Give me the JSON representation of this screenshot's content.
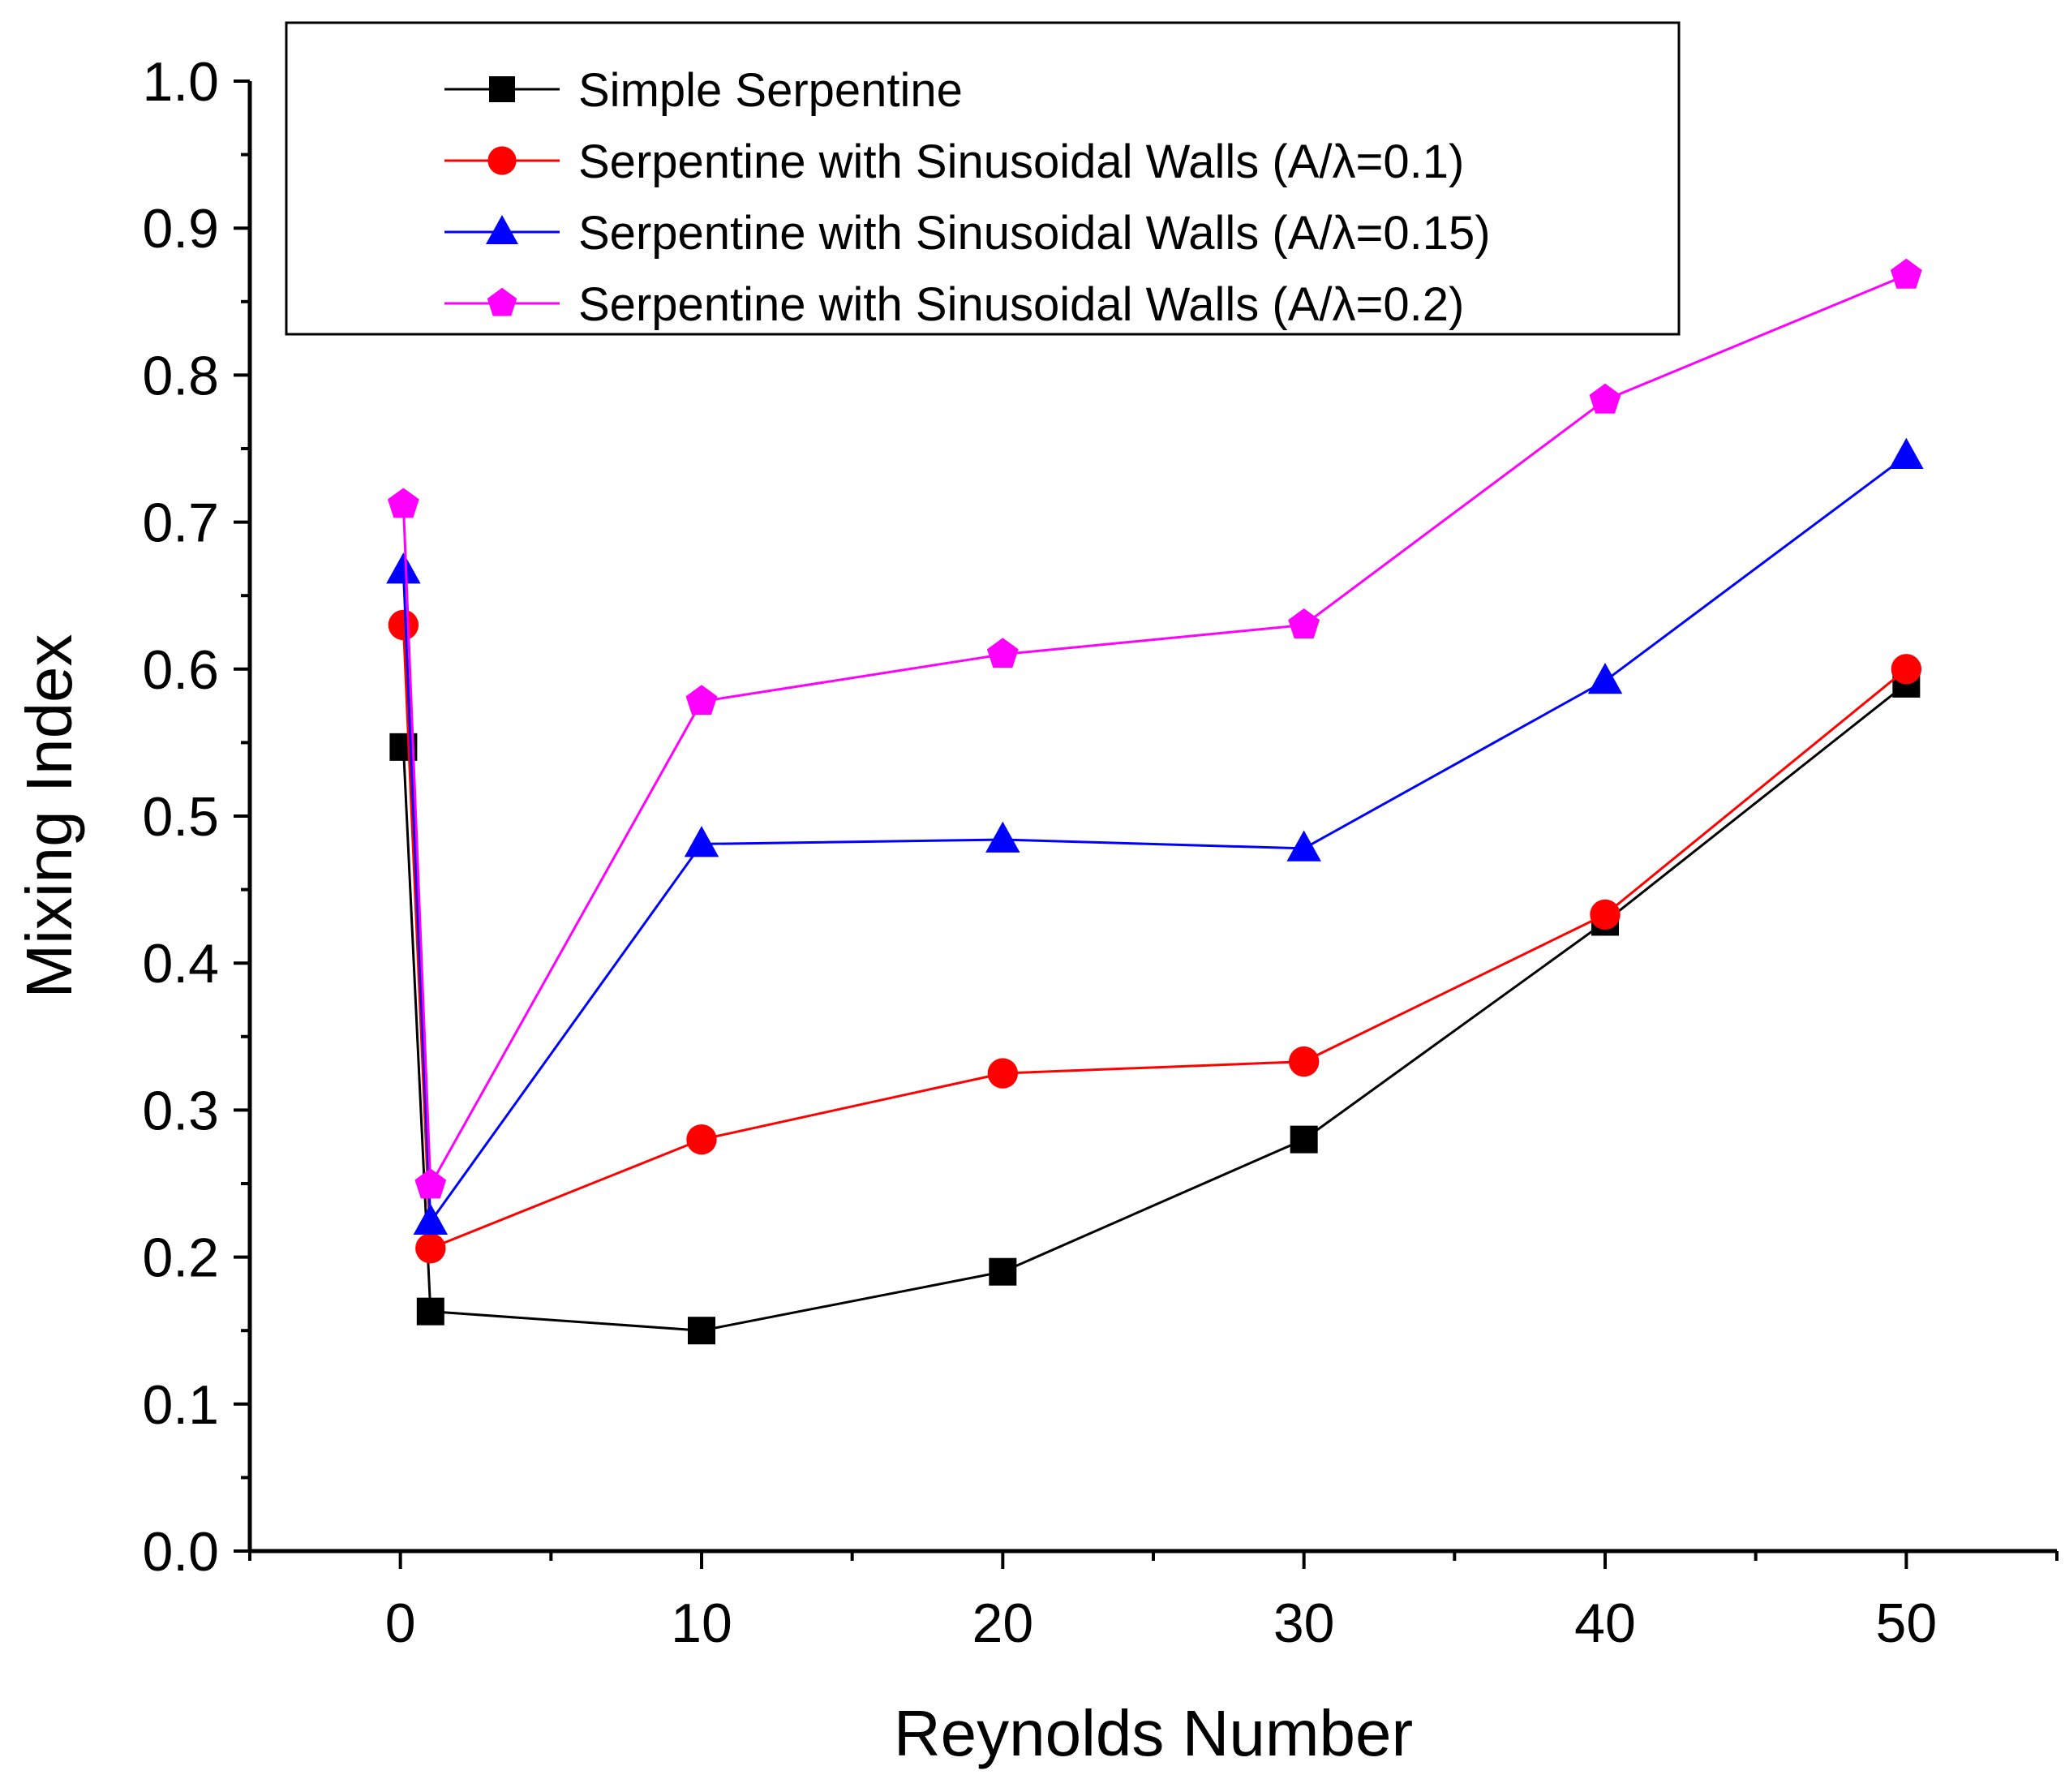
{
  "chart_data": {
    "type": "line",
    "title": "",
    "xlabel": "Reynolds Number",
    "ylabel": "Mixing Index",
    "xlim": [
      -5,
      55
    ],
    "ylim": [
      0.0,
      1.0
    ],
    "x_ticks": [
      0,
      10,
      20,
      30,
      40,
      50
    ],
    "x_tick_labels": [
      "0",
      "10",
      "20",
      "30",
      "40",
      "50"
    ],
    "y_ticks": [
      0.0,
      0.1,
      0.2,
      0.3,
      0.4,
      0.5,
      0.6,
      0.7,
      0.8,
      0.9,
      1.0
    ],
    "y_tick_labels": [
      "0.0",
      "0.1",
      "0.2",
      "0.3",
      "0.4",
      "0.5",
      "0.6",
      "0.7",
      "0.8",
      "0.9",
      "1.0"
    ],
    "legend_position": "top-left",
    "x": [
      0.1,
      1,
      10,
      20,
      30,
      40,
      50
    ],
    "series": [
      {
        "name": "Simple Serpentine",
        "color": "#000000",
        "marker": "square",
        "values": [
          0.547,
          0.163,
          0.15,
          0.19,
          0.28,
          0.428,
          0.59
        ]
      },
      {
        "name": "Serpentine with Sinusoidal Walls (A/λ=0.1)",
        "color": "#ff0000",
        "marker": "circle",
        "values": [
          0.63,
          0.206,
          0.28,
          0.325,
          0.333,
          0.433,
          0.6
        ]
      },
      {
        "name": "Serpentine with Sinusoidal Walls (A/λ=0.15)",
        "color": "#0000ff",
        "marker": "triangle",
        "values": [
          0.667,
          0.224,
          0.481,
          0.484,
          0.478,
          0.592,
          0.745
        ]
      },
      {
        "name": "Serpentine with Sinusoidal Walls (A/λ=0.2)",
        "color": "#ff00ff",
        "marker": "pentagon",
        "values": [
          0.712,
          0.249,
          0.578,
          0.61,
          0.63,
          0.783,
          0.868
        ]
      }
    ]
  }
}
